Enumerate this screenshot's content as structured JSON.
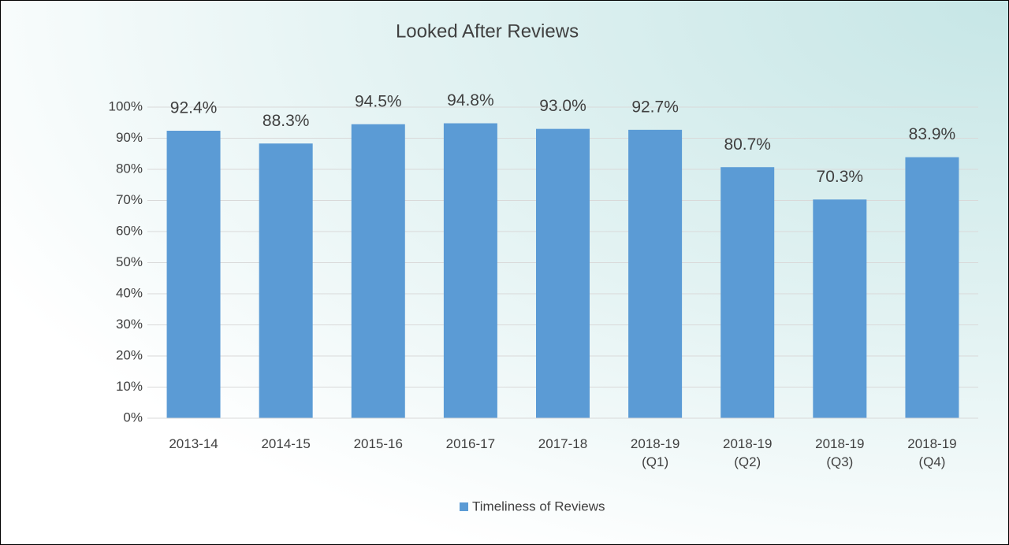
{
  "chart_data": {
    "type": "bar",
    "title": "Looked After Reviews",
    "categories": [
      "2013-14",
      "2014-15",
      "2015-16",
      "2016-17",
      "2017-18",
      "2018-19 (Q1)",
      "2018-19 (Q2)",
      "2018-19 (Q3)",
      "2018-19 (Q4)"
    ],
    "series": [
      {
        "name": "Timeliness of Reviews",
        "color": "#5b9bd5",
        "values": [
          92.4,
          88.3,
          94.5,
          94.8,
          93.0,
          92.7,
          80.7,
          70.3,
          83.9
        ],
        "value_labels": [
          "92.4%",
          "88.3%",
          "94.5%",
          "94.8%",
          "93.0%",
          "92.7%",
          "80.7%",
          "70.3%",
          "83.9%"
        ]
      }
    ],
    "ylim": [
      0,
      100
    ],
    "yticks": [
      {
        "value": 0,
        "label": "0%"
      },
      {
        "value": 10,
        "label": "10%"
      },
      {
        "value": 20,
        "label": "20%"
      },
      {
        "value": 30,
        "label": "30%"
      },
      {
        "value": 40,
        "label": "40%"
      },
      {
        "value": 50,
        "label": "50%"
      },
      {
        "value": 60,
        "label": "60%"
      },
      {
        "value": 70,
        "label": "70%"
      },
      {
        "value": 80,
        "label": "80%"
      },
      {
        "value": 90,
        "label": "90%"
      },
      {
        "value": 100,
        "label": "100%"
      }
    ],
    "grid": true,
    "legend": "bottom"
  }
}
